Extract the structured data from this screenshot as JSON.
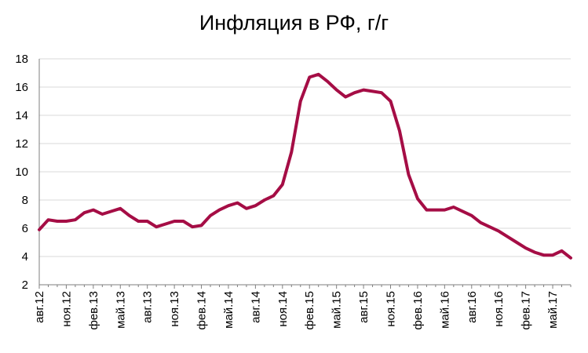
{
  "chart_data": {
    "type": "line",
    "title": "Инфляция в РФ, г/г",
    "xlabel": "",
    "ylabel": "",
    "ylim": [
      2,
      18
    ],
    "yticks": [
      2,
      4,
      6,
      8,
      10,
      12,
      14,
      16,
      18
    ],
    "grid": true,
    "legend": "none",
    "x_tick_labels": [
      "авг.12",
      "ноя.12",
      "фев.13",
      "май.13",
      "авг.13",
      "ноя.13",
      "фев.14",
      "май.14",
      "авг.14",
      "ноя.14",
      "фев.15",
      "май.15",
      "авг.15",
      "ноя.15",
      "фев.16",
      "май.16",
      "авг.16",
      "ноя.16",
      "фев.17",
      "май.17"
    ],
    "x": [
      "авг.12",
      "сен.12",
      "окт.12",
      "ноя.12",
      "дек.12",
      "янв.13",
      "фев.13",
      "мар.13",
      "апр.13",
      "май.13",
      "июн.13",
      "июл.13",
      "авг.13",
      "сен.13",
      "окт.13",
      "ноя.13",
      "дек.13",
      "янв.14",
      "фев.14",
      "мар.14",
      "апр.14",
      "май.14",
      "июн.14",
      "июл.14",
      "авг.14",
      "сен.14",
      "окт.14",
      "ноя.14",
      "дек.14",
      "янв.15",
      "фев.15",
      "мар.15",
      "апр.15",
      "май.15",
      "июн.15",
      "июл.15",
      "авг.15",
      "сен.15",
      "окт.15",
      "ноя.15",
      "дек.15",
      "янв.16",
      "фев.16",
      "мар.16",
      "апр.16",
      "май.16",
      "июн.16",
      "июл.16",
      "авг.16",
      "сен.16",
      "окт.16",
      "ноя.16",
      "дек.16",
      "янв.17",
      "фев.17",
      "мар.17",
      "апр.17",
      "май.17",
      "июн.17",
      "июл.17"
    ],
    "series": [
      {
        "values": [
          5.9,
          6.6,
          6.5,
          6.5,
          6.6,
          7.1,
          7.3,
          7.0,
          7.2,
          7.4,
          6.9,
          6.5,
          6.5,
          6.1,
          6.3,
          6.5,
          6.5,
          6.1,
          6.2,
          6.9,
          7.3,
          7.6,
          7.8,
          7.4,
          7.6,
          8.0,
          8.3,
          9.1,
          11.4,
          15.0,
          16.7,
          16.9,
          16.4,
          15.8,
          15.3,
          15.6,
          15.8,
          15.7,
          15.6,
          15.0,
          12.9,
          9.8,
          8.1,
          7.3,
          7.3,
          7.3,
          7.5,
          7.2,
          6.9,
          6.4,
          6.1,
          5.8,
          5.4,
          5.0,
          4.6,
          4.3,
          4.1,
          4.1,
          4.4,
          3.9
        ],
        "color": "#A50D45"
      }
    ]
  }
}
